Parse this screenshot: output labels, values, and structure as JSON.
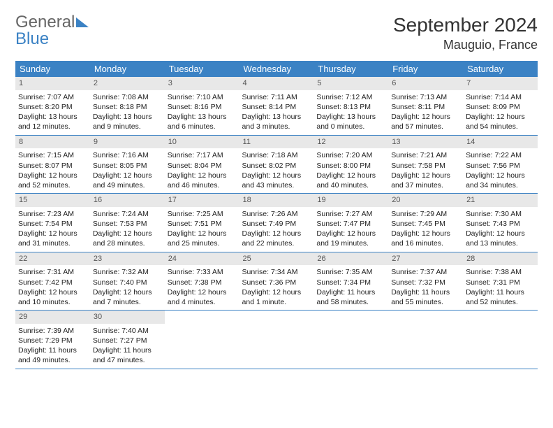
{
  "logo": {
    "part1": "General",
    "part2": "Blue"
  },
  "title": "September 2024",
  "location": "Mauguio, France",
  "colors": {
    "header_bg": "#3b82c4",
    "header_text": "#ffffff",
    "daynum_bg": "#e8e8e8",
    "row_border": "#3b82c4",
    "text": "#222222"
  },
  "weekdays": [
    "Sunday",
    "Monday",
    "Tuesday",
    "Wednesday",
    "Thursday",
    "Friday",
    "Saturday"
  ],
  "weeks": [
    [
      {
        "n": "1",
        "sr": "Sunrise: 7:07 AM",
        "ss": "Sunset: 8:20 PM",
        "d1": "Daylight: 13 hours",
        "d2": "and 12 minutes."
      },
      {
        "n": "2",
        "sr": "Sunrise: 7:08 AM",
        "ss": "Sunset: 8:18 PM",
        "d1": "Daylight: 13 hours",
        "d2": "and 9 minutes."
      },
      {
        "n": "3",
        "sr": "Sunrise: 7:10 AM",
        "ss": "Sunset: 8:16 PM",
        "d1": "Daylight: 13 hours",
        "d2": "and 6 minutes."
      },
      {
        "n": "4",
        "sr": "Sunrise: 7:11 AM",
        "ss": "Sunset: 8:14 PM",
        "d1": "Daylight: 13 hours",
        "d2": "and 3 minutes."
      },
      {
        "n": "5",
        "sr": "Sunrise: 7:12 AM",
        "ss": "Sunset: 8:13 PM",
        "d1": "Daylight: 13 hours",
        "d2": "and 0 minutes."
      },
      {
        "n": "6",
        "sr": "Sunrise: 7:13 AM",
        "ss": "Sunset: 8:11 PM",
        "d1": "Daylight: 12 hours",
        "d2": "and 57 minutes."
      },
      {
        "n": "7",
        "sr": "Sunrise: 7:14 AM",
        "ss": "Sunset: 8:09 PM",
        "d1": "Daylight: 12 hours",
        "d2": "and 54 minutes."
      }
    ],
    [
      {
        "n": "8",
        "sr": "Sunrise: 7:15 AM",
        "ss": "Sunset: 8:07 PM",
        "d1": "Daylight: 12 hours",
        "d2": "and 52 minutes."
      },
      {
        "n": "9",
        "sr": "Sunrise: 7:16 AM",
        "ss": "Sunset: 8:05 PM",
        "d1": "Daylight: 12 hours",
        "d2": "and 49 minutes."
      },
      {
        "n": "10",
        "sr": "Sunrise: 7:17 AM",
        "ss": "Sunset: 8:04 PM",
        "d1": "Daylight: 12 hours",
        "d2": "and 46 minutes."
      },
      {
        "n": "11",
        "sr": "Sunrise: 7:18 AM",
        "ss": "Sunset: 8:02 PM",
        "d1": "Daylight: 12 hours",
        "d2": "and 43 minutes."
      },
      {
        "n": "12",
        "sr": "Sunrise: 7:20 AM",
        "ss": "Sunset: 8:00 PM",
        "d1": "Daylight: 12 hours",
        "d2": "and 40 minutes."
      },
      {
        "n": "13",
        "sr": "Sunrise: 7:21 AM",
        "ss": "Sunset: 7:58 PM",
        "d1": "Daylight: 12 hours",
        "d2": "and 37 minutes."
      },
      {
        "n": "14",
        "sr": "Sunrise: 7:22 AM",
        "ss": "Sunset: 7:56 PM",
        "d1": "Daylight: 12 hours",
        "d2": "and 34 minutes."
      }
    ],
    [
      {
        "n": "15",
        "sr": "Sunrise: 7:23 AM",
        "ss": "Sunset: 7:54 PM",
        "d1": "Daylight: 12 hours",
        "d2": "and 31 minutes."
      },
      {
        "n": "16",
        "sr": "Sunrise: 7:24 AM",
        "ss": "Sunset: 7:53 PM",
        "d1": "Daylight: 12 hours",
        "d2": "and 28 minutes."
      },
      {
        "n": "17",
        "sr": "Sunrise: 7:25 AM",
        "ss": "Sunset: 7:51 PM",
        "d1": "Daylight: 12 hours",
        "d2": "and 25 minutes."
      },
      {
        "n": "18",
        "sr": "Sunrise: 7:26 AM",
        "ss": "Sunset: 7:49 PM",
        "d1": "Daylight: 12 hours",
        "d2": "and 22 minutes."
      },
      {
        "n": "19",
        "sr": "Sunrise: 7:27 AM",
        "ss": "Sunset: 7:47 PM",
        "d1": "Daylight: 12 hours",
        "d2": "and 19 minutes."
      },
      {
        "n": "20",
        "sr": "Sunrise: 7:29 AM",
        "ss": "Sunset: 7:45 PM",
        "d1": "Daylight: 12 hours",
        "d2": "and 16 minutes."
      },
      {
        "n": "21",
        "sr": "Sunrise: 7:30 AM",
        "ss": "Sunset: 7:43 PM",
        "d1": "Daylight: 12 hours",
        "d2": "and 13 minutes."
      }
    ],
    [
      {
        "n": "22",
        "sr": "Sunrise: 7:31 AM",
        "ss": "Sunset: 7:42 PM",
        "d1": "Daylight: 12 hours",
        "d2": "and 10 minutes."
      },
      {
        "n": "23",
        "sr": "Sunrise: 7:32 AM",
        "ss": "Sunset: 7:40 PM",
        "d1": "Daylight: 12 hours",
        "d2": "and 7 minutes."
      },
      {
        "n": "24",
        "sr": "Sunrise: 7:33 AM",
        "ss": "Sunset: 7:38 PM",
        "d1": "Daylight: 12 hours",
        "d2": "and 4 minutes."
      },
      {
        "n": "25",
        "sr": "Sunrise: 7:34 AM",
        "ss": "Sunset: 7:36 PM",
        "d1": "Daylight: 12 hours",
        "d2": "and 1 minute."
      },
      {
        "n": "26",
        "sr": "Sunrise: 7:35 AM",
        "ss": "Sunset: 7:34 PM",
        "d1": "Daylight: 11 hours",
        "d2": "and 58 minutes."
      },
      {
        "n": "27",
        "sr": "Sunrise: 7:37 AM",
        "ss": "Sunset: 7:32 PM",
        "d1": "Daylight: 11 hours",
        "d2": "and 55 minutes."
      },
      {
        "n": "28",
        "sr": "Sunrise: 7:38 AM",
        "ss": "Sunset: 7:31 PM",
        "d1": "Daylight: 11 hours",
        "d2": "and 52 minutes."
      }
    ],
    [
      {
        "n": "29",
        "sr": "Sunrise: 7:39 AM",
        "ss": "Sunset: 7:29 PM",
        "d1": "Daylight: 11 hours",
        "d2": "and 49 minutes."
      },
      {
        "n": "30",
        "sr": "Sunrise: 7:40 AM",
        "ss": "Sunset: 7:27 PM",
        "d1": "Daylight: 11 hours",
        "d2": "and 47 minutes."
      },
      null,
      null,
      null,
      null,
      null
    ]
  ]
}
